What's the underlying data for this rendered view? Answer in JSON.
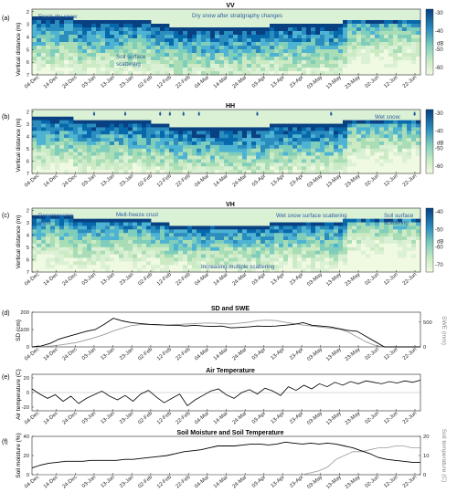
{
  "date_ticks": [
    "04-Dec",
    "14-Dec",
    "24-Dec",
    "03-Jan",
    "13-Jan",
    "23-Jan",
    "02-Feb",
    "12-Feb",
    "22-Feb",
    "04-Mar",
    "14-Mar",
    "24-Mar",
    "03-Apr",
    "13-Apr",
    "23-Apr",
    "03-May",
    "13-May",
    "23-May",
    "02-Jun",
    "12-Jun",
    "22-Jun"
  ],
  "colors": {
    "cmap_light": "#f0f9e2",
    "cmap_mid": "#7fcdbb",
    "cmap_dark": "#084081",
    "annotation": "#2b5c9c",
    "sd_line": "#000000",
    "swe_line": "#999999"
  },
  "chart_data": [
    {
      "panel": "(a)",
      "type": "heatmap",
      "title": "VV",
      "ylabel": "Vertical distance (m)",
      "y_ticks": [
        2,
        3,
        4,
        5,
        6,
        7
      ],
      "colorbar": {
        "label": "dB",
        "ticks": [
          -30,
          -40,
          -50,
          -60
        ]
      },
      "annotations": [
        "Fresh dry snow",
        "Dry snow after stratigraphy changes",
        "Soil surface",
        "scattering"
      ]
    },
    {
      "panel": "(b)",
      "type": "heatmap",
      "title": "HH",
      "ylabel": "Vertical distance (m)",
      "y_ticks": [
        2,
        3,
        4,
        5,
        6,
        7
      ],
      "colorbar": {
        "label": "dB",
        "ticks": [
          -30,
          -40,
          -50,
          -60
        ]
      },
      "annotations": [
        "Wet snow:"
      ]
    },
    {
      "panel": "(c)",
      "type": "heatmap",
      "title": "VH",
      "ylabel": "Vertical distance (m)",
      "y_ticks": [
        2,
        3,
        4,
        5,
        6,
        7
      ],
      "colorbar": {
        "label": "dB",
        "ticks": [
          -40,
          -50,
          -60,
          -70
        ]
      },
      "annotations": [
        "Decomposing",
        "crust",
        "Melt-freeze crust",
        "Wet snow surface scattering",
        "Soil surface",
        "scattering",
        "Increasing multiple scattering"
      ]
    },
    {
      "panel": "(d)",
      "type": "line",
      "title": "SD and SWE",
      "ylabel": "SD (cm)",
      "y2label": "SWE (mm)",
      "y_ticks": [
        0,
        100,
        200
      ],
      "y2_ticks": [
        0,
        500
      ],
      "ylim": [
        0,
        200
      ],
      "y2lim": [
        0,
        700
      ],
      "series": [
        {
          "values": [
            0,
            5,
            20,
            45,
            60,
            75,
            90,
            100,
            130,
            165,
            150,
            140,
            135,
            130,
            128,
            125,
            125,
            120,
            125,
            120,
            118,
            120,
            110,
            112,
            115,
            120,
            118,
            120,
            125,
            130,
            140,
            125,
            120,
            115,
            105,
            95,
            90,
            60,
            30,
            0,
            0,
            0,
            0,
            0
          ]
        },
        {
          "values": [
            0,
            5,
            15,
            35,
            60,
            90,
            140,
            190,
            250,
            320,
            380,
            430,
            450,
            450,
            440,
            440,
            450,
            460,
            470,
            480,
            480,
            470,
            460,
            480,
            500,
            530,
            540,
            530,
            500,
            470,
            440,
            420,
            400,
            380,
            360,
            300,
            200,
            100,
            30,
            0,
            0,
            0,
            0,
            0
          ]
        }
      ]
    },
    {
      "panel": "(e)",
      "type": "line",
      "title": "Air Temperature",
      "ylabel": "Air temperature (C)",
      "y_ticks": [
        -20,
        0,
        20
      ],
      "ylim": [
        -25,
        25
      ],
      "series": [
        {
          "values": [
            5,
            -2,
            -8,
            -3,
            -12,
            -5,
            -15,
            -8,
            -3,
            2,
            -5,
            -10,
            -4,
            -12,
            -2,
            3,
            -6,
            -14,
            -8,
            -2,
            -18,
            -10,
            -4,
            2,
            5,
            -3,
            -8,
            0,
            4,
            -2,
            6,
            2,
            -4,
            8,
            3,
            10,
            5,
            12,
            8,
            14,
            10,
            15,
            12,
            16,
            14,
            12,
            15,
            13,
            16,
            14,
            17
          ]
        }
      ]
    },
    {
      "panel": "(f)",
      "type": "line",
      "title": "Soil Moisture and Soil Temperature",
      "ylabel": "Soil moisture (%)",
      "y2label": "Soil temperature (C)",
      "y_ticks": [
        0,
        20,
        40
      ],
      "y2_ticks": [
        0,
        10,
        20
      ],
      "ylim": [
        0,
        40
      ],
      "y2lim": [
        0,
        20
      ],
      "series": [
        {
          "values": [
            7,
            10,
            12,
            13,
            14,
            14,
            14,
            15,
            15,
            15,
            15,
            16,
            16,
            17,
            18,
            19,
            20,
            22,
            24,
            25,
            26,
            28,
            30,
            30,
            30,
            31,
            32,
            32,
            31,
            32,
            34,
            33,
            32,
            33,
            32,
            33,
            32,
            30,
            28,
            25,
            22,
            18,
            16,
            15,
            14,
            13,
            13
          ]
        },
        {
          "values": [
            0,
            0,
            0,
            0,
            0,
            0,
            0,
            0,
            0,
            0,
            0,
            0,
            0,
            0,
            0,
            0,
            0,
            0,
            0,
            0,
            0,
            0,
            0,
            0,
            0,
            0,
            0,
            0,
            0,
            0,
            0,
            0,
            0,
            1,
            2,
            4,
            8,
            10,
            12,
            12,
            13,
            14,
            14,
            15,
            15,
            14,
            14
          ]
        }
      ]
    }
  ]
}
